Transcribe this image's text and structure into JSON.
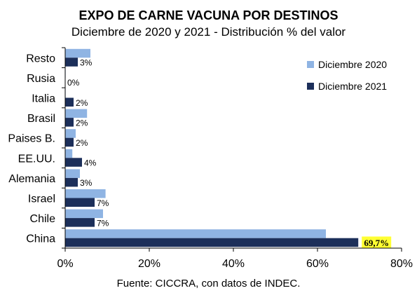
{
  "chart_data": {
    "type": "bar",
    "orientation": "horizontal",
    "title": "EXPO DE CARNE VACUNA POR DESTINOS",
    "subtitle": "Diciembre de 2020 y 2021 - Distribución % del valor",
    "source": "Fuente: CICCRA, con datos de INDEC.",
    "categories": [
      "Resto",
      "Rusia",
      "Italia",
      "Brasil",
      "Paises B.",
      "EE.UU.",
      "Alemania",
      "Israel",
      "Chile",
      "China"
    ],
    "series": [
      {
        "name": "Diciembre 2020",
        "color": "#8fb4e3",
        "values": [
          6.0,
          0.1,
          0.1,
          5.2,
          2.5,
          1.7,
          3.5,
          9.6,
          9.0,
          62.0
        ]
      },
      {
        "name": "Diciembre 2021",
        "color": "#1c2f5a",
        "values": [
          3,
          0,
          2,
          2,
          2,
          4,
          3,
          7,
          7,
          69.7
        ]
      }
    ],
    "data_labels": [
      "3%",
      "0%",
      "2%",
      "2%",
      "2%",
      "4%",
      "3%",
      "7%",
      "7%",
      "69,7%"
    ],
    "highlight_label": {
      "text": "69,7%",
      "color": "#ffff33"
    },
    "xlim": [
      0,
      80
    ],
    "xticks": [
      "0%",
      "20%",
      "40%",
      "60%",
      "80%"
    ],
    "xtick_values": [
      0,
      20,
      40,
      60,
      80
    ],
    "grid": false,
    "legend_position": "top-right"
  }
}
